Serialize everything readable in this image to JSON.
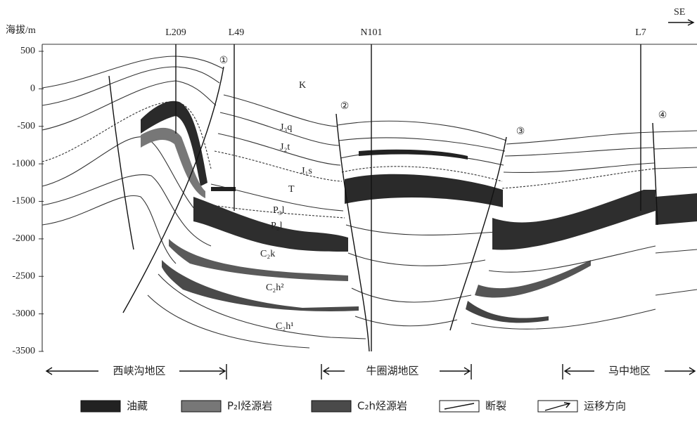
{
  "y_axis": {
    "label": "海拔/m",
    "ticks": [
      500,
      0,
      -500,
      -1000,
      -1500,
      -2000,
      -2500,
      -3000,
      -3500
    ]
  },
  "direction": "SE",
  "wells": [
    "L209",
    "L49",
    "N101",
    "L7"
  ],
  "faults": [
    "①",
    "②",
    "③",
    "④"
  ],
  "formations": [
    "K",
    "J₃q",
    "J₂t",
    "J₁s",
    "T",
    "P₃l",
    "P₂l",
    "C₂k",
    "C₂h²",
    "C₂h¹"
  ],
  "regions": [
    "西峡沟地区",
    "牛圈湖地区",
    "马中地区"
  ],
  "legend": [
    "油藏",
    "P₂l烃源岩",
    "C₂h烃源岩",
    "断裂",
    "运移方向"
  ]
}
